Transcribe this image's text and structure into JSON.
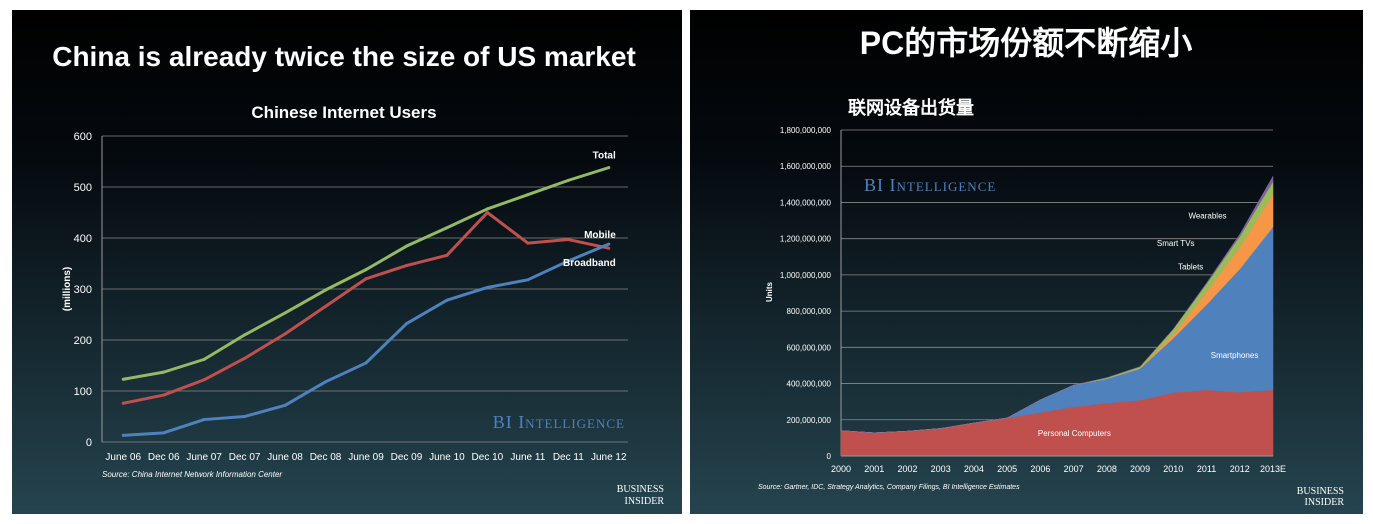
{
  "chart_data": [
    {
      "type": "line",
      "slide_title": "China is already twice the size of US market",
      "title": "Chinese Internet Users",
      "xlabel": "",
      "ylabel": "(millions)",
      "ylim": [
        0,
        600
      ],
      "yticks": [
        "0",
        "100",
        "200",
        "300",
        "400",
        "500",
        "600"
      ],
      "grid": true,
      "categories": [
        "June 06",
        "Dec 06",
        "June 07",
        "Dec 07",
        "June 08",
        "Dec 08",
        "June 09",
        "Dec 09",
        "June 10",
        "Dec 10",
        "June 11",
        "Dec 11",
        "June 12"
      ],
      "series": [
        {
          "name": "Total",
          "color": "#95b964",
          "values": [
            123,
            137,
            162,
            210,
            253,
            298,
            338,
            384,
            420,
            457,
            485,
            513,
            538
          ]
        },
        {
          "name": "Mobile",
          "color": "#c0504d",
          "values": [
            76,
            92,
            122,
            164,
            212,
            266,
            320,
            346,
            366,
            450,
            390,
            397,
            380
          ]
        },
        {
          "name": "Broadband",
          "color": "#4f81bd",
          "values": [
            13,
            18,
            44,
            50,
            72,
            118,
            155,
            232,
            278,
            303,
            318,
            355,
            388
          ]
        }
      ],
      "watermark": "BI Intelligence",
      "source": "Source: China Internet Network Information Center",
      "brand": [
        "BUSINESS",
        "INSIDER"
      ]
    },
    {
      "type": "area",
      "slide_title": "PC的市场份额不断缩小",
      "title": "联网设备出货量",
      "xlabel": "",
      "ylabel": "Units",
      "ylim": [
        0,
        1800000000
      ],
      "yticks": [
        "0",
        "200,000,000",
        "400,000,000",
        "600,000,000",
        "800,000,000",
        "1,000,000,000",
        "1,200,000,000",
        "1,400,000,000",
        "1,600,000,000",
        "1,800,000,000"
      ],
      "grid": true,
      "categories": [
        "2000",
        "2001",
        "2002",
        "2003",
        "2004",
        "2005",
        "2006",
        "2007",
        "2008",
        "2009",
        "2010",
        "2011",
        "2012",
        "2013E"
      ],
      "stacked": true,
      "series": [
        {
          "name": "Personal Computers",
          "color": "#c0504d",
          "values": [
            140000000,
            128000000,
            137000000,
            152000000,
            182000000,
            210000000,
            240000000,
            271000000,
            292000000,
            308000000,
            350000000,
            365000000,
            352000000,
            365000000
          ]
        },
        {
          "name": "Smartphones",
          "color": "#4f81bd",
          "values": [
            0,
            0,
            0,
            0,
            0,
            0,
            70000000,
            120000000,
            135000000,
            175000000,
            300000000,
            470000000,
            680000000,
            900000000
          ]
        },
        {
          "name": "Tablets",
          "color": "#f79646",
          "values": [
            0,
            0,
            0,
            0,
            0,
            0,
            0,
            0,
            0,
            0,
            20000000,
            70000000,
            120000000,
            180000000
          ]
        },
        {
          "name": "Smart TVs",
          "color": "#9bbb59",
          "values": [
            0,
            0,
            0,
            0,
            0,
            0,
            0,
            0,
            5000000,
            10000000,
            30000000,
            45000000,
            60000000,
            70000000
          ]
        },
        {
          "name": "Wearables",
          "color": "#8064a2",
          "values": [
            0,
            0,
            0,
            0,
            0,
            0,
            0,
            0,
            0,
            0,
            0,
            5000000,
            12000000,
            30000000
          ]
        }
      ],
      "watermark": "BI Intelligence",
      "source": "Source: Gartner, IDC, Strategy Analytics, Company Filings, BI Intelligence Estimates",
      "brand": [
        "BUSINESS",
        "INSIDER"
      ]
    }
  ]
}
